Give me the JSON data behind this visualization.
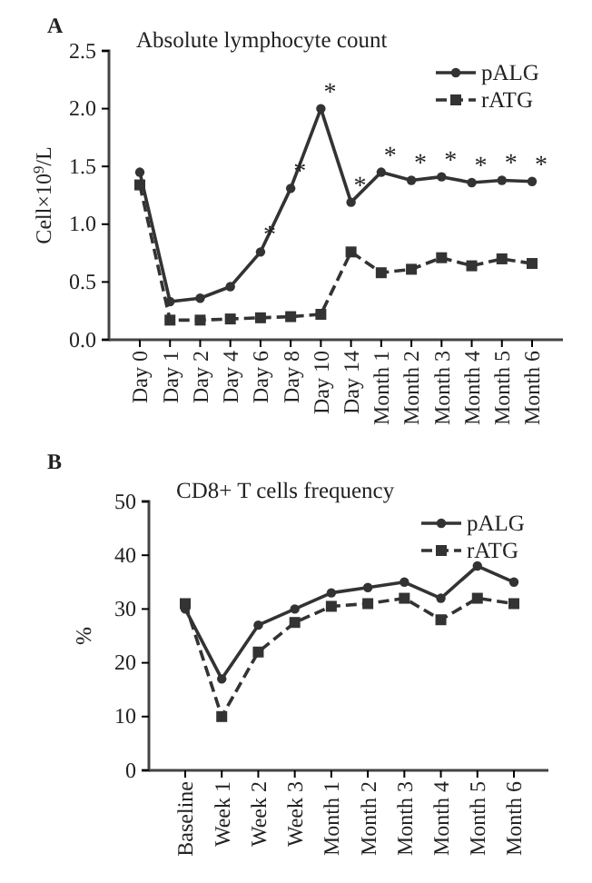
{
  "chart_data": [
    {
      "type": "line",
      "title": "Absolute lymphocyte count",
      "ylabel": "Cell×10$^{9}$/L",
      "categories": [
        "Day 0",
        "Day 1",
        "Day 2",
        "Day 4",
        "Day 6",
        "Day 8",
        "Day 10",
        "Day 14",
        "Month 1",
        "Month 2",
        "Month 3",
        "Month 4",
        "Month 5",
        "Month 6"
      ],
      "series": [
        {
          "name": "pALG",
          "color": "#333333",
          "marker": "circle",
          "line_style": "solid",
          "values": [
            1.45,
            0.33,
            0.36,
            0.46,
            0.76,
            1.31,
            2.0,
            1.19,
            1.45,
            1.38,
            1.41,
            1.36,
            1.38,
            1.37
          ]
        },
        {
          "name": "rATG",
          "color": "#333333",
          "marker": "square",
          "line_style": "dashed",
          "values": [
            1.34,
            0.17,
            0.17,
            0.18,
            0.19,
            0.2,
            0.22,
            0.76,
            0.58,
            0.61,
            0.71,
            0.64,
            0.7,
            0.66
          ]
        }
      ],
      "ylim": [
        0,
        2.5
      ],
      "yticks": [
        {
          "value": 0,
          "label": "0.0"
        },
        {
          "value": 0.5,
          "label": "0.5"
        },
        {
          "value": 1,
          "label": "1.0"
        },
        {
          "value": 1.5,
          "label": "1.5"
        },
        {
          "value": 2,
          "label": "2.0"
        },
        {
          "value": 2.5,
          "label": "2.5"
        }
      ],
      "grid": false,
      "legend": "top right",
      "annotations": [
        "A",
        {
          "text": "*",
          "x": "Day 6",
          "y": 0.76
        },
        {
          "text": "*",
          "x": "Day 8",
          "y": 1.31
        },
        {
          "text": "*",
          "x": "Day 10",
          "y": 2.0
        },
        {
          "text": "*",
          "x": "Day 14",
          "y": 1.19
        },
        {
          "text": "*",
          "x": "Month 1",
          "y": 1.45
        },
        {
          "text": "*",
          "x": "Month 2",
          "y": 1.38
        },
        {
          "text": "*",
          "x": "Month 3",
          "y": 1.41
        },
        {
          "text": "*",
          "x": "Month 4",
          "y": 1.36
        },
        {
          "text": "*",
          "x": "Month 5",
          "y": 1.38
        },
        {
          "text": "*",
          "x": "Month 6",
          "y": 1.37
        }
      ]
    },
    {
      "type": "line",
      "title": "CD8+ T cells frequency",
      "ylabel": "%",
      "categories": [
        "Baseline",
        "Week 1",
        "Week 2",
        "Week 3",
        "Month 1",
        "Month 2",
        "Month 3",
        "Month 4",
        "Month 5",
        "Month 6"
      ],
      "series": [
        {
          "name": "pALG",
          "color": "#333333",
          "marker": "circle",
          "line_style": "solid",
          "values": [
            30,
            17,
            27,
            30,
            33,
            34,
            35,
            32,
            38,
            35
          ]
        },
        {
          "name": "rATG",
          "color": "#333333",
          "marker": "square",
          "line_style": "dashed",
          "values": [
            31,
            10,
            22,
            27.5,
            30.5,
            31,
            32,
            28,
            32,
            31
          ]
        }
      ],
      "ylim": [
        0,
        50
      ],
      "yticks": [
        0,
        10,
        20,
        30,
        40,
        50
      ],
      "grid": false,
      "legend": "top right",
      "annotations": [
        "B"
      ]
    }
  ]
}
